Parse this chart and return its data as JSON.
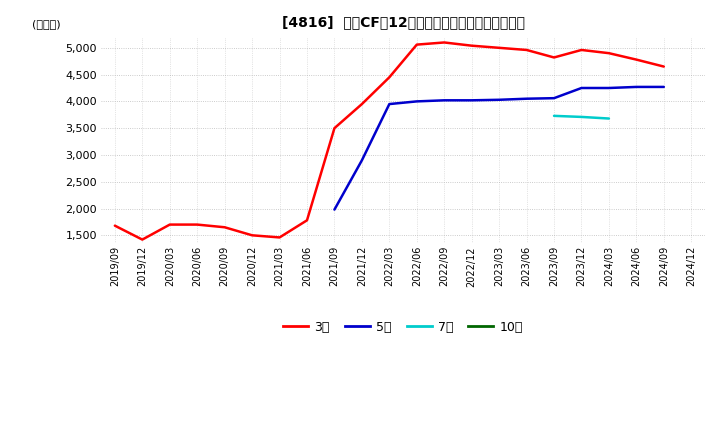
{
  "title": "[4816]  投賄CFだ12か月移動合計の標準偏差の推移",
  "ylabel": "(百万円)",
  "ylim": [
    1350,
    5200
  ],
  "yticks": [
    1500,
    2000,
    2500,
    3000,
    3500,
    4000,
    4500,
    5000
  ],
  "series": {
    "3年": {
      "color": "#ff0000",
      "x": [
        "2019/09",
        "2019/12",
        "2020/03",
        "2020/06",
        "2020/09",
        "2020/12",
        "2021/03",
        "2021/06",
        "2021/09",
        "2021/12",
        "2022/03",
        "2022/06",
        "2022/09",
        "2022/12",
        "2023/03",
        "2023/06",
        "2023/09",
        "2023/12",
        "2024/03",
        "2024/06",
        "2024/09",
        "2024/12"
      ],
      "y": [
        1680,
        1420,
        1700,
        1700,
        1650,
        1500,
        1460,
        1780,
        3500,
        3950,
        4450,
        5060,
        5100,
        5040,
        5000,
        4960,
        4820,
        4960,
        4900,
        4780,
        4650,
        null
      ]
    },
    "5年": {
      "color": "#0000cc",
      "x": [
        "2021/09",
        "2021/12",
        "2022/03",
        "2022/06",
        "2022/09",
        "2022/12",
        "2023/03",
        "2023/06",
        "2023/09",
        "2023/12",
        "2024/03",
        "2024/06",
        "2024/09",
        "2024/12"
      ],
      "y": [
        1980,
        2900,
        3950,
        4000,
        4020,
        4020,
        4030,
        4050,
        4060,
        4250,
        4250,
        4270,
        4270,
        null
      ]
    },
    "7年": {
      "color": "#00cccc",
      "x": [
        "2023/09",
        "2023/12",
        "2024/03"
      ],
      "y": [
        3730,
        3710,
        3680
      ]
    },
    "10年": {
      "color": "#006600",
      "x": [],
      "y": []
    }
  },
  "legend_entries": [
    "3年",
    "5年",
    "7年",
    "10年"
  ],
  "legend_colors": [
    "#ff0000",
    "#0000cc",
    "#00cccc",
    "#006600"
  ],
  "x_labels": [
    "2019/09",
    "2019/12",
    "2020/03",
    "2020/06",
    "2020/09",
    "2020/12",
    "2021/03",
    "2021/06",
    "2021/09",
    "2021/12",
    "2022/03",
    "2022/06",
    "2022/09",
    "2022/12",
    "2023/03",
    "2023/06",
    "2023/09",
    "2023/12",
    "2024/03",
    "2024/06",
    "2024/09",
    "2024/12"
  ],
  "background_color": "#ffffff",
  "plot_bg_color": "#ffffff",
  "grid_color": "#aaaaaa"
}
